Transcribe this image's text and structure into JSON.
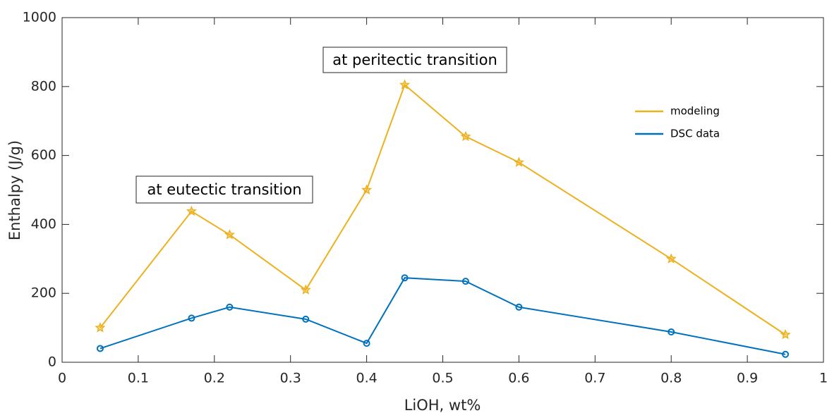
{
  "chart_data": {
    "type": "line",
    "xlabel": "LiOH, wt%",
    "ylabel": "Enthalpy (J/g)",
    "x": [
      0.05,
      0.17,
      0.22,
      0.32,
      0.4,
      0.45,
      0.53,
      0.6,
      0.8,
      0.95
    ],
    "series": [
      {
        "name": "modeling",
        "color": "#EDB120",
        "marker": "star",
        "values": [
          100,
          438,
          370,
          210,
          500,
          805,
          655,
          580,
          300,
          80
        ]
      },
      {
        "name": "DSC data",
        "color": "#0072BD",
        "marker": "circle",
        "values": [
          40,
          128,
          160,
          125,
          55,
          245,
          235,
          160,
          88,
          23
        ]
      }
    ],
    "annotations": [
      "at eutectic transition",
      "at peritectic transition"
    ],
    "xlim": [
      0,
      1
    ],
    "xticks": [
      0,
      0.1,
      0.2,
      0.3,
      0.4,
      0.5,
      0.6,
      0.7,
      0.8,
      0.9,
      1
    ],
    "ylim": [
      0,
      1000
    ],
    "yticks": [
      0,
      200,
      400,
      600,
      800,
      1000
    ],
    "grid": false,
    "legend": "upper right"
  }
}
